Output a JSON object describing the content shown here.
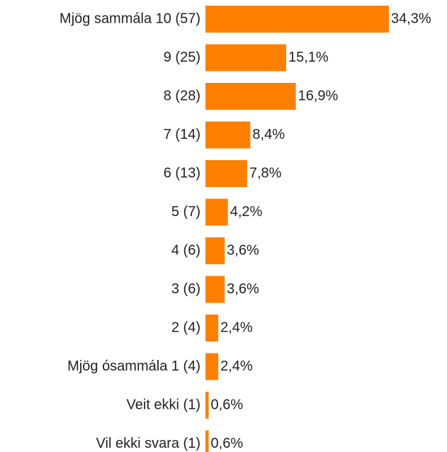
{
  "chart_data": {
    "type": "bar",
    "orientation": "horizontal",
    "categories": [
      "Mjög sammála 10 (57)",
      "9 (25)",
      "8 (28)",
      "7 (14)",
      "6 (13)",
      "5 (7)",
      "4 (6)",
      "3 (6)",
      "2 (4)",
      "Mjög ósammála 1 (4)",
      "Veit ekki (1)",
      "Vil ekki svara (1)"
    ],
    "values": [
      34.3,
      15.1,
      16.9,
      8.4,
      7.8,
      4.2,
      3.6,
      3.6,
      2.4,
      2.4,
      0.6,
      0.6
    ],
    "value_labels": [
      "34,3%",
      "15,1%",
      "16,9%",
      "8,4%",
      "7,8%",
      "4,2%",
      "3,6%",
      "3,6%",
      "2,4%",
      "2,4%",
      "0,6%",
      "0,6%"
    ],
    "color": "#ff8000"
  }
}
